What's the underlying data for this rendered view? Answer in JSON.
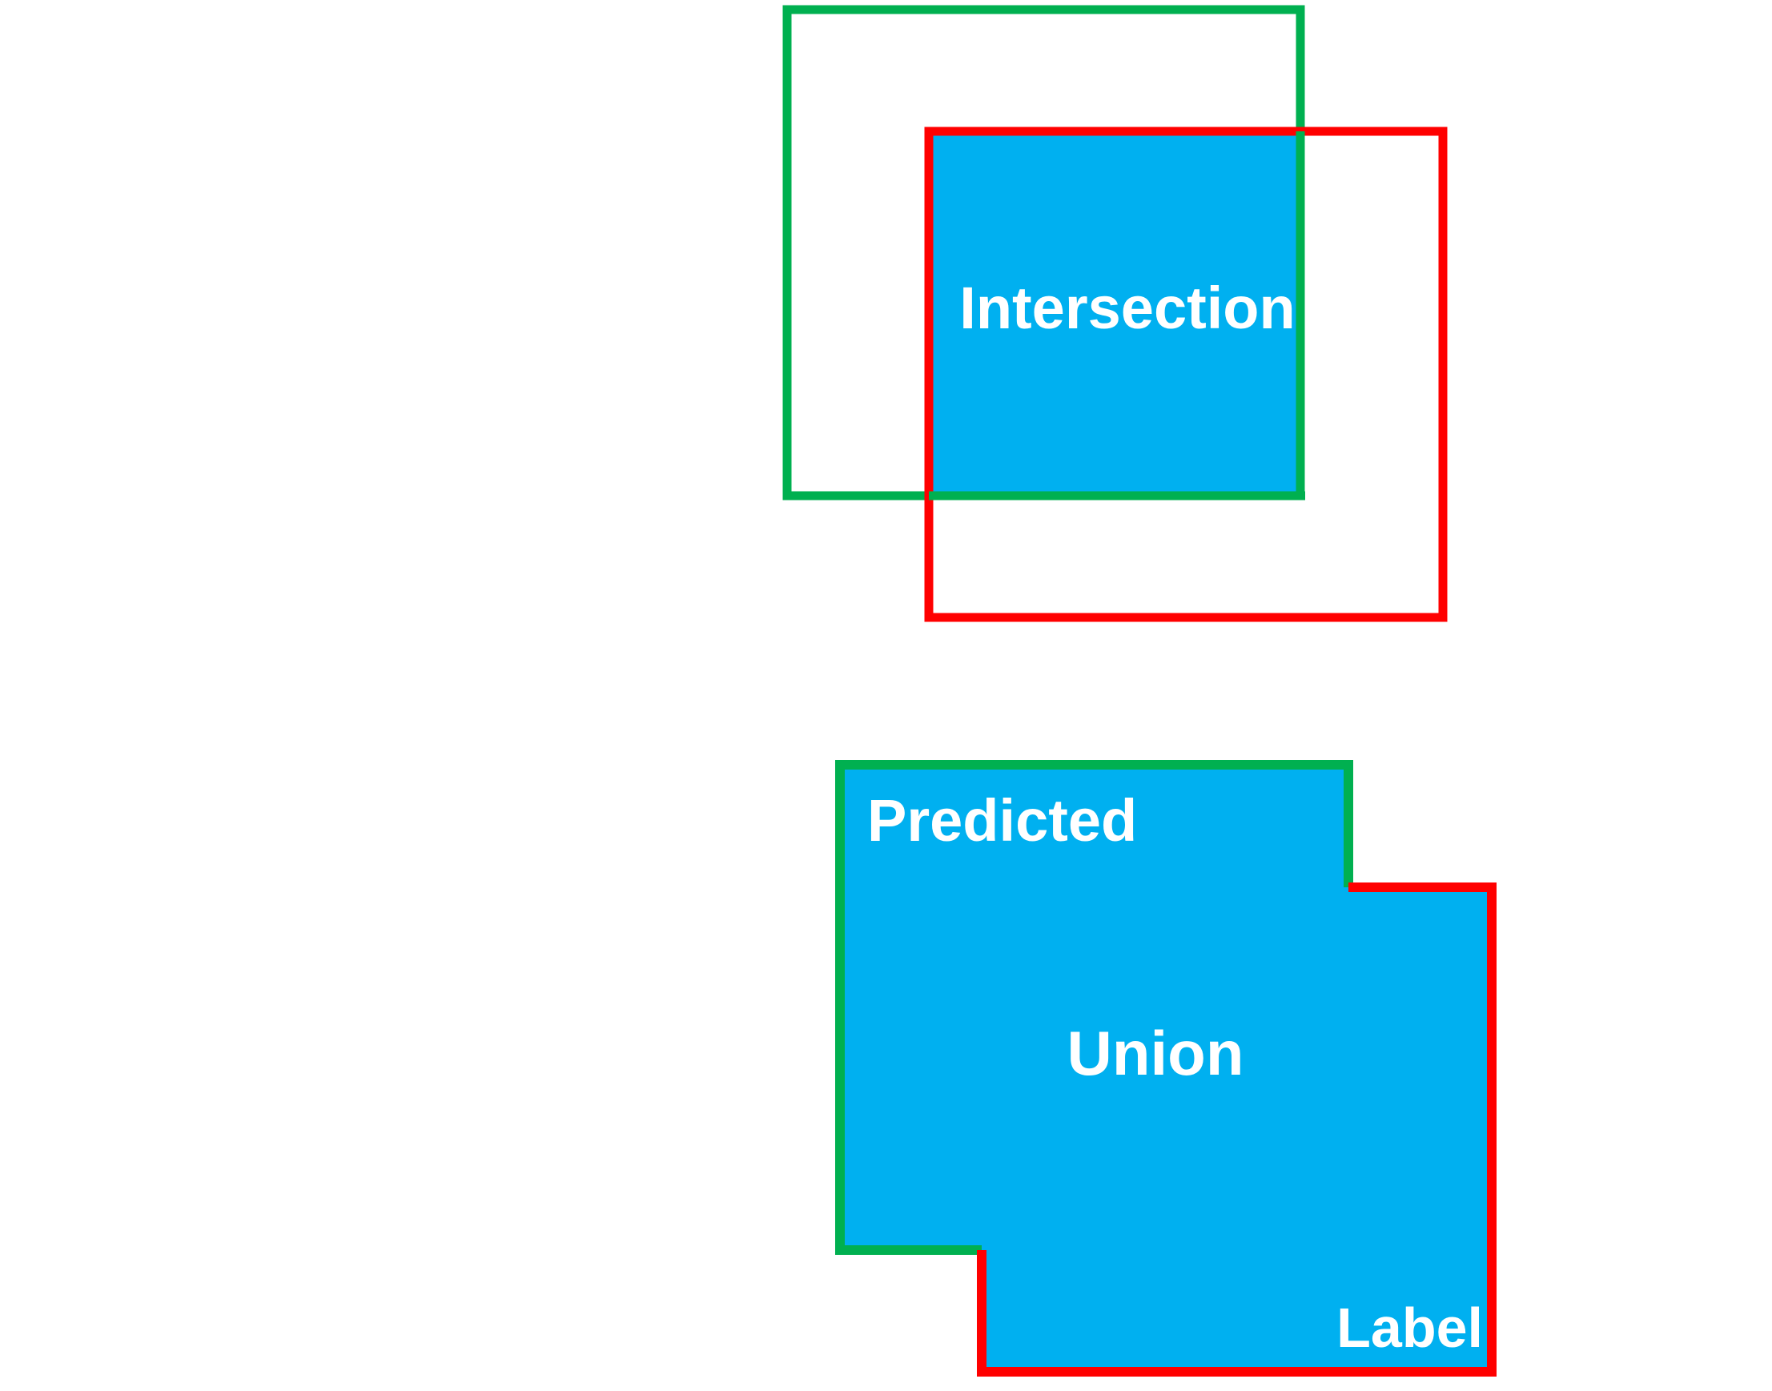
{
  "labels": {
    "intersection": "Intersection",
    "predicted": "Predicted",
    "union": "Union",
    "label": "Label"
  },
  "colors": {
    "predicted_box": "#00b050",
    "label_box": "#ff0000",
    "fill": "#00b0f0",
    "text": "#ffffff",
    "background": "#ffffff"
  }
}
